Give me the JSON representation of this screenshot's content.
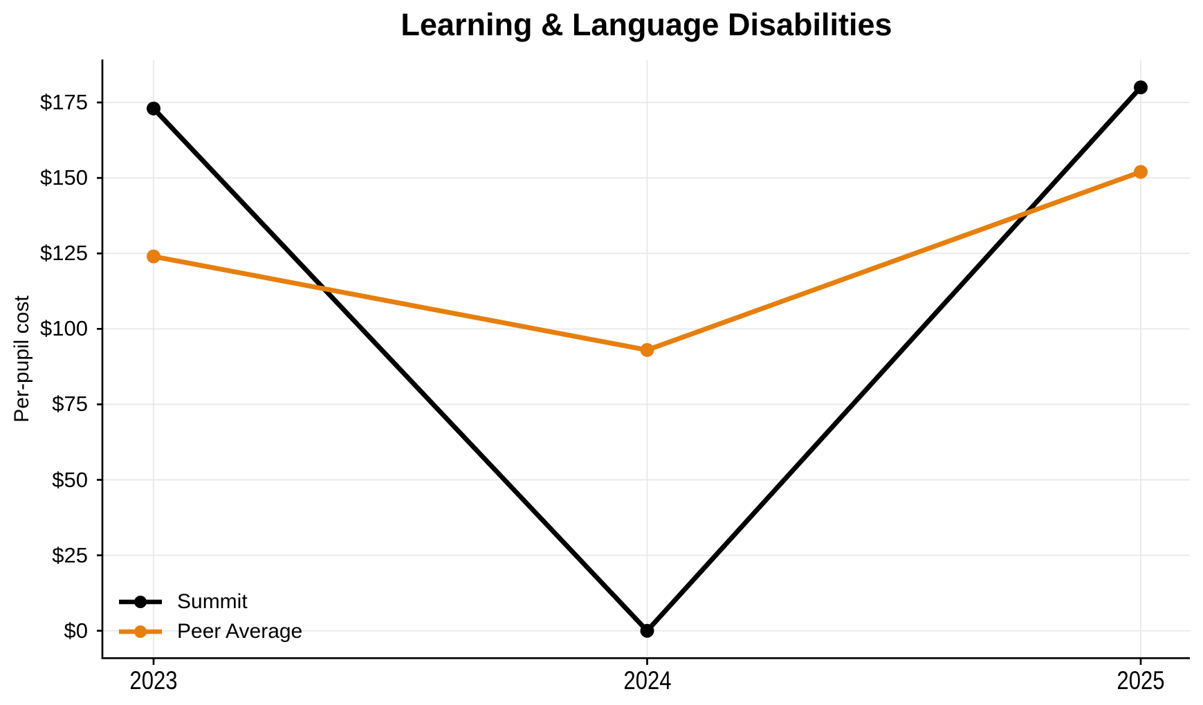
{
  "chart_data": {
    "type": "line",
    "title": "Learning & Language Disabilities",
    "ylabel": "Per-pupil cost",
    "x": [
      "2023",
      "2024",
      "2025"
    ],
    "series": [
      {
        "name": "Summit",
        "color": "#000000",
        "values": [
          173,
          0,
          180
        ]
      },
      {
        "name": "Peer Average",
        "color": "#e67f0e",
        "values": [
          124,
          93,
          152
        ]
      }
    ],
    "yticks": [
      0,
      25,
      50,
      75,
      100,
      125,
      150,
      175
    ],
    "ytick_labels": [
      "$0",
      "$25",
      "$50",
      "$75",
      "$100",
      "$125",
      "$150",
      "$175"
    ],
    "ylim": [
      -9,
      189
    ],
    "grid": true,
    "legend_position": "lower left",
    "grid_color": "#e8e8e8",
    "axis_color": "#000000"
  }
}
